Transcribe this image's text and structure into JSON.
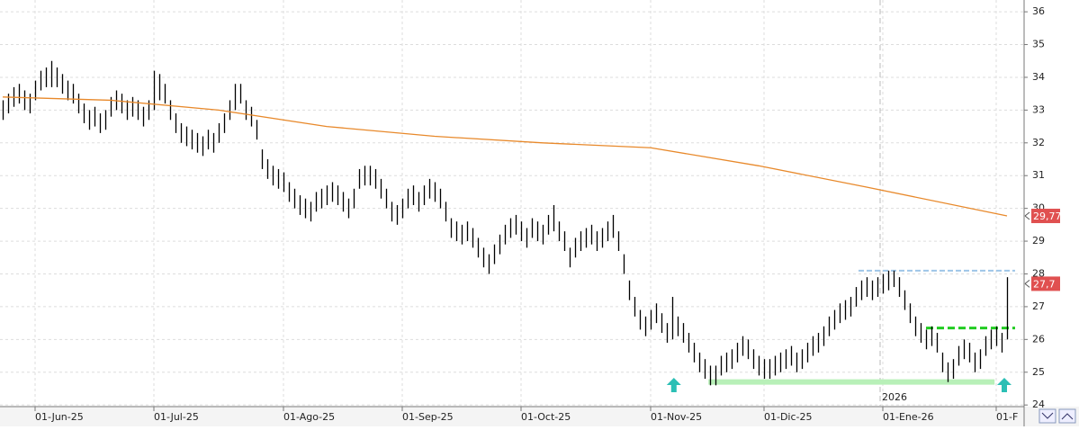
{
  "chart_data": {
    "type": "ohlc",
    "xlim": [
      -0.5,
      189
    ],
    "ylim": [
      23.95,
      36.36
    ],
    "yticks": [
      24,
      25,
      26,
      27,
      28,
      29,
      30,
      31,
      32,
      33,
      34,
      35,
      36
    ],
    "xticks": [
      {
        "value": 6,
        "label": "01-Jun-25"
      },
      {
        "value": 28,
        "label": "01-Jul-25"
      },
      {
        "value": 52,
        "label": "01-Ago-25"
      },
      {
        "value": 74,
        "label": "01-Sep-25"
      },
      {
        "value": 96,
        "label": "01-Oct-25"
      },
      {
        "value": 120,
        "label": "01-Nov-25"
      },
      {
        "value": 141,
        "label": "01-Dic-25"
      },
      {
        "value": 163,
        "label": "01-Ene-26"
      },
      {
        "value": 184,
        "label": "01-F"
      }
    ],
    "grid": true,
    "color": "#000000",
    "high": [
      33.3,
      33.5,
      33.7,
      33.8,
      33.6,
      33.5,
      33.9,
      34.2,
      34.3,
      34.5,
      34.3,
      34.1,
      33.9,
      33.8,
      33.5,
      33.2,
      33.0,
      33.1,
      32.9,
      33.0,
      33.4,
      33.6,
      33.5,
      33.3,
      33.4,
      33.3,
      33.1,
      33.3,
      34.2,
      34.1,
      33.8,
      33.3,
      32.9,
      32.6,
      32.5,
      32.4,
      32.3,
      32.2,
      32.4,
      32.3,
      32.6,
      32.9,
      33.3,
      33.8,
      33.8,
      33.3,
      33.1,
      32.7,
      31.8,
      31.5,
      31.3,
      31.2,
      31.1,
      30.8,
      30.6,
      30.4,
      30.3,
      30.2,
      30.5,
      30.6,
      30.7,
      30.8,
      30.7,
      30.5,
      30.3,
      30.6,
      31.2,
      31.3,
      31.3,
      31.2,
      30.9,
      30.6,
      30.2,
      30.1,
      30.3,
      30.6,
      30.7,
      30.5,
      30.7,
      30.9,
      30.8,
      30.6,
      30.2,
      29.7,
      29.6,
      29.5,
      29.6,
      29.4,
      29.1,
      28.8,
      28.6,
      28.9,
      29.2,
      29.5,
      29.7,
      29.8,
      29.6,
      29.4,
      29.7,
      29.6,
      29.5,
      29.8,
      30.1,
      29.6,
      29.3,
      28.8,
      29.1,
      29.3,
      29.4,
      29.5,
      29.3,
      29.4,
      29.6,
      29.8,
      29.3,
      28.6,
      27.8,
      27.3,
      26.9,
      26.7,
      26.9,
      27.1,
      26.8,
      26.5,
      27.3,
      26.7,
      26.5,
      26.2,
      25.9,
      25.6,
      25.4,
      25.2,
      25.2,
      25.5,
      25.6,
      25.7,
      25.9,
      26.1,
      26.0,
      25.7,
      25.5,
      25.4,
      25.4,
      25.5,
      25.6,
      25.7,
      25.8,
      25.6,
      25.7,
      25.9,
      26.1,
      26.2,
      26.4,
      26.7,
      26.9,
      27.1,
      27.2,
      27.3,
      27.6,
      27.8,
      27.9,
      27.8,
      27.9,
      28.0,
      28.1,
      28.1,
      27.9,
      27.5,
      27.1,
      26.7,
      26.5,
      26.3,
      26.4,
      26.2,
      25.6,
      25.3,
      25.4,
      25.8,
      26.0,
      25.9,
      25.6,
      25.7,
      26.1,
      26.3,
      26.4,
      26.2,
      27.9
    ],
    "low": [
      32.7,
      32.9,
      33.1,
      33.2,
      33.0,
      32.9,
      33.3,
      33.6,
      33.7,
      33.7,
      33.7,
      33.5,
      33.3,
      33.2,
      32.9,
      32.6,
      32.4,
      32.5,
      32.3,
      32.4,
      32.8,
      33.0,
      32.9,
      32.7,
      32.8,
      32.7,
      32.5,
      32.7,
      33.0,
      33.3,
      33.2,
      32.7,
      32.3,
      32.0,
      31.9,
      31.8,
      31.7,
      31.6,
      31.8,
      31.7,
      32.0,
      32.3,
      32.7,
      33.0,
      33.2,
      32.7,
      32.5,
      32.1,
      31.2,
      30.9,
      30.7,
      30.6,
      30.5,
      30.2,
      30.0,
      29.8,
      29.7,
      29.6,
      29.9,
      30.0,
      30.1,
      30.2,
      30.1,
      29.9,
      29.7,
      30.0,
      30.6,
      30.7,
      30.7,
      30.6,
      30.3,
      30.0,
      29.6,
      29.5,
      29.7,
      30.0,
      30.1,
      29.9,
      30.1,
      30.3,
      30.2,
      30.0,
      29.6,
      29.1,
      29.0,
      28.9,
      29.0,
      28.8,
      28.5,
      28.2,
      28.0,
      28.3,
      28.6,
      28.9,
      29.1,
      29.2,
      29.0,
      28.8,
      29.1,
      29.0,
      28.9,
      29.2,
      29.3,
      29.0,
      28.7,
      28.2,
      28.5,
      28.7,
      28.8,
      28.9,
      28.7,
      28.8,
      29.0,
      29.1,
      28.7,
      28.0,
      27.2,
      26.7,
      26.3,
      26.1,
      26.3,
      26.5,
      26.2,
      25.9,
      26.0,
      26.1,
      25.9,
      25.6,
      25.3,
      25.0,
      24.8,
      24.6,
      24.6,
      24.9,
      25.0,
      25.1,
      25.3,
      25.5,
      25.4,
      25.1,
      24.9,
      24.8,
      24.8,
      24.9,
      25.0,
      25.1,
      25.2,
      25.0,
      25.1,
      25.3,
      25.5,
      25.6,
      25.8,
      26.1,
      26.3,
      26.5,
      26.6,
      26.7,
      27.0,
      27.2,
      27.3,
      27.2,
      27.3,
      27.4,
      27.5,
      27.6,
      27.3,
      26.9,
      26.5,
      26.1,
      25.9,
      25.7,
      25.8,
      25.6,
      25.0,
      24.7,
      24.8,
      25.2,
      25.4,
      25.3,
      25.0,
      25.1,
      25.5,
      25.7,
      25.8,
      25.6,
      26.0
    ],
    "ma": {
      "color": "#e8892b",
      "x": [
        0,
        20,
        40,
        60,
        80,
        100,
        120,
        140,
        160,
        186
      ],
      "values": [
        33.4,
        33.3,
        33.0,
        32.5,
        32.2,
        32.0,
        31.85,
        31.3,
        30.65,
        29.77
      ]
    },
    "levels": [
      {
        "value": 28.1,
        "from": 158.5,
        "to": 187.5,
        "color": "#9ec5e8"
      },
      {
        "value": 26.35,
        "from": 171,
        "to": 187.5,
        "color": "#22cc22"
      },
      {
        "value": 24.7,
        "from": 130.7,
        "to": 183.7,
        "color": "#b8f0b8"
      }
    ],
    "arrows": {
      "x": [
        124.3,
        185.5
      ],
      "color": "#2bbfb5"
    },
    "year_marker": {
      "x": 162.5,
      "label": "2026"
    },
    "price_labels": [
      {
        "value": 29.77,
        "label": "29,77"
      },
      {
        "value": 27.7,
        "label": "27,7"
      }
    ],
    "price_label_color": "#e05050"
  }
}
